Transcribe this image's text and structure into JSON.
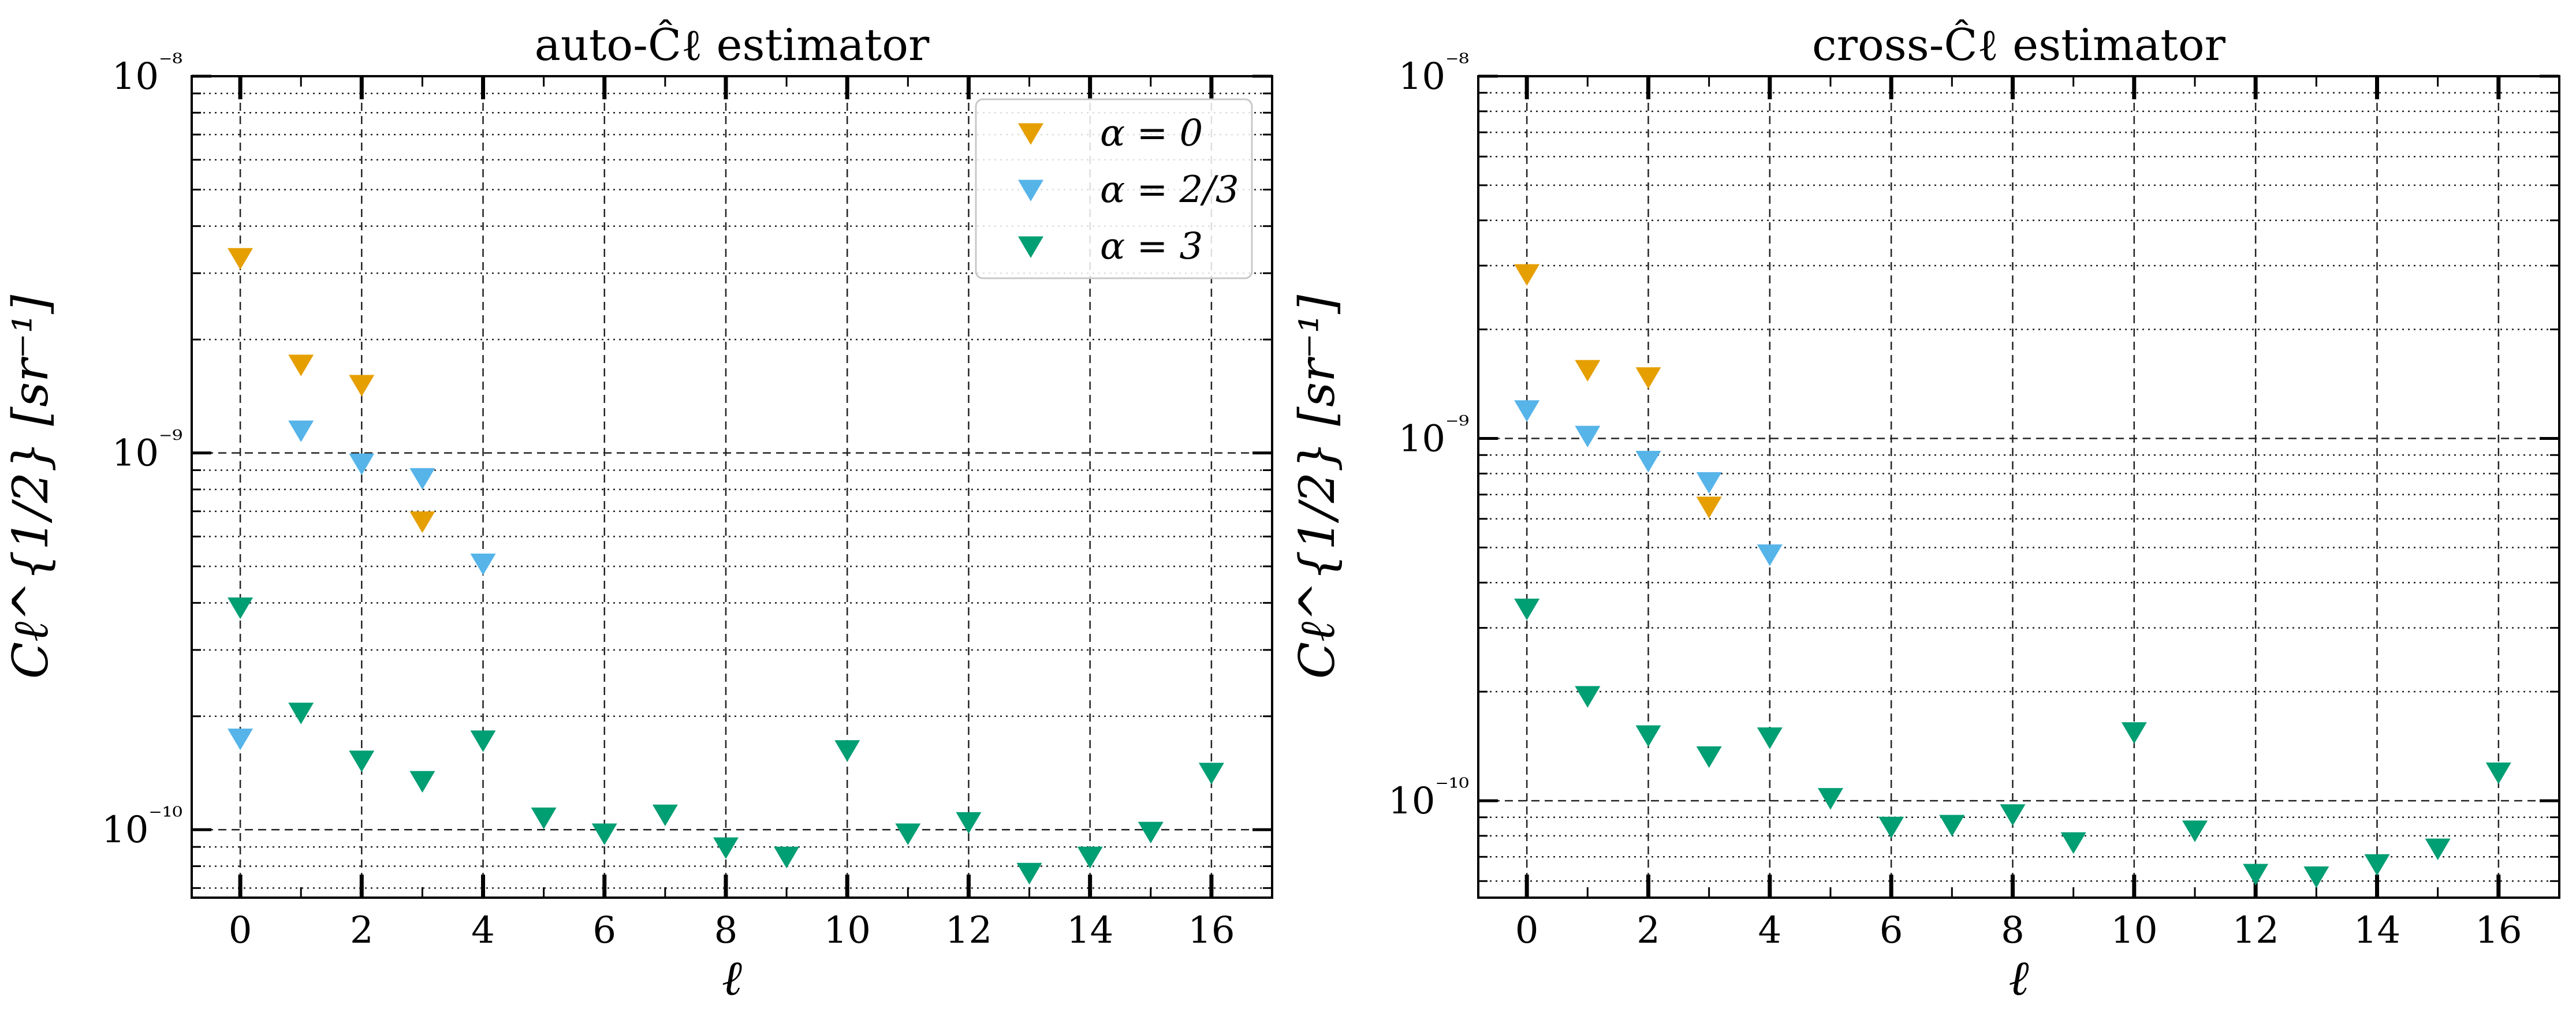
{
  "colors": {
    "alpha0": "#E69F00",
    "alpha23": "#56B4E9",
    "alpha3": "#009E73"
  },
  "chart_data": [
    {
      "type": "scatter",
      "title": "auto-Ĉℓ estimator",
      "xlabel": "ℓ",
      "ylabel": "Cℓ^{1/2} [sr⁻¹]",
      "yscale": "log",
      "xlim": [
        -0.8,
        17
      ],
      "ylim": [
        6.6e-11,
        1e-08
      ],
      "xticks": [
        "0",
        "2",
        "4",
        "6",
        "8",
        "10",
        "12",
        "14",
        "16"
      ],
      "yticks": [
        "10⁻⁸",
        "10⁻⁹",
        "10⁻¹⁰"
      ],
      "legend_position": "top-right",
      "series": [
        {
          "name": "α = 0",
          "color": "#E69F00",
          "x": [
            0,
            1,
            2,
            3
          ],
          "y": [
            3.3e-09,
            1.72e-09,
            1.52e-09,
            6.6e-10
          ]
        },
        {
          "name": "α = 2/3",
          "color": "#56B4E9",
          "x": [
            0,
            1,
            2,
            3,
            4
          ],
          "y": [
            1.75e-10,
            1.15e-09,
            9.4e-10,
            8.6e-10,
            5.1e-10
          ]
        },
        {
          "name": "α = 3",
          "color": "#009E73",
          "x": [
            0,
            1,
            2,
            3,
            4,
            5,
            6,
            7,
            8,
            9,
            10,
            11,
            12,
            13,
            14,
            15,
            16
          ],
          "y": [
            3.9e-10,
            2.05e-10,
            1.53e-10,
            1.35e-10,
            1.73e-10,
            1.08e-10,
            9.8e-11,
            1.1e-10,
            9e-11,
            8.5e-11,
            1.63e-10,
            9.8e-11,
            1.05e-10,
            7.7e-11,
            8.5e-11,
            9.9e-11,
            1.42e-10
          ]
        }
      ]
    },
    {
      "type": "scatter",
      "title": "cross-Ĉℓ estimator",
      "xlabel": "ℓ",
      "ylabel": "Cℓ^{1/2} [sr⁻¹]",
      "yscale": "log",
      "xlim": [
        -0.8,
        17
      ],
      "ylim": [
        5.4e-11,
        1e-08
      ],
      "xticks": [
        "0",
        "2",
        "4",
        "6",
        "8",
        "10",
        "12",
        "14",
        "16"
      ],
      "yticks": [
        "10⁻⁸",
        "10⁻⁹",
        "10⁻¹⁰"
      ],
      "legend_position": "none",
      "series": [
        {
          "name": "α = 0",
          "color": "#E69F00",
          "x": [
            0,
            1,
            2,
            3
          ],
          "y": [
            2.85e-09,
            1.55e-09,
            1.48e-09,
            6.5e-10
          ]
        },
        {
          "name": "α = 2/3",
          "color": "#56B4E9",
          "x": [
            0,
            1,
            2,
            3,
            4
          ],
          "y": [
            1.2e-09,
            1.02e-09,
            8.7e-10,
            7.6e-10,
            4.8e-10
          ]
        },
        {
          "name": "α = 3",
          "color": "#009E73",
          "x": [
            0,
            1,
            2,
            3,
            4,
            5,
            6,
            7,
            8,
            9,
            10,
            11,
            12,
            13,
            14,
            15,
            16
          ],
          "y": [
            3.4e-10,
            1.95e-10,
            1.52e-10,
            1.33e-10,
            1.5e-10,
            1.02e-10,
            8.5e-11,
            8.6e-11,
            9.2e-11,
            7.7e-11,
            1.55e-10,
            8.3e-11,
            6.3e-11,
            6.2e-11,
            6.7e-11,
            7.4e-11,
            1.2e-10
          ]
        }
      ]
    }
  ]
}
